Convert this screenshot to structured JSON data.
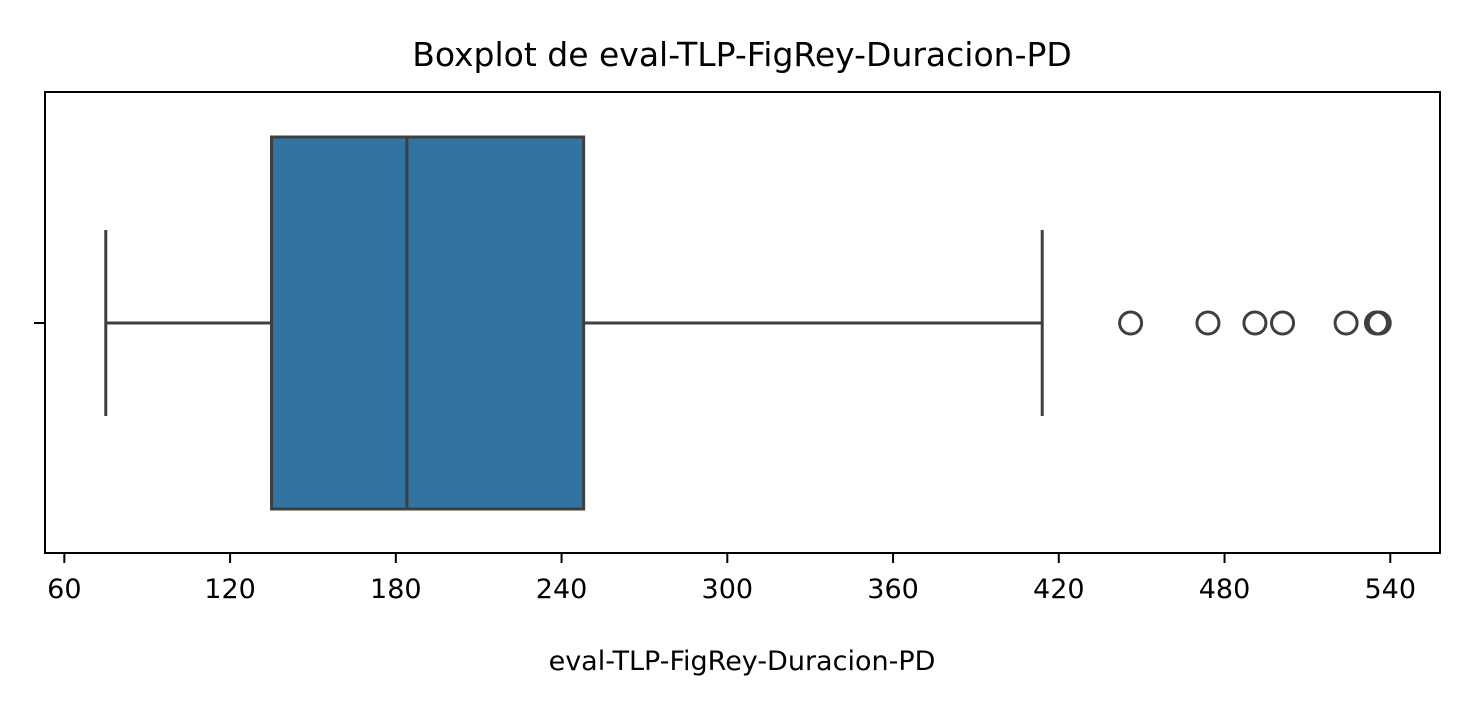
{
  "chart_data": {
    "type": "boxplot",
    "orientation": "horizontal",
    "title": "Boxplot de eval-TLP-FigRey-Duracion-PD",
    "xlabel": "eval-TLP-FigRey-Duracion-PD",
    "ylabel": "",
    "xlim": [
      53,
      558
    ],
    "xticks": [
      60,
      120,
      180,
      240,
      300,
      360,
      420,
      480,
      540
    ],
    "xtick_labels": [
      "60",
      "120",
      "180",
      "240",
      "300",
      "360",
      "420",
      "480",
      "540"
    ],
    "grid": false,
    "legend": "none",
    "box": {
      "whisker_low": 75,
      "q1": 135,
      "median": 184,
      "q3": 248,
      "whisker_high": 414
    },
    "outliers": [
      446,
      474,
      491,
      501,
      524,
      535,
      536
    ],
    "colors": {
      "box_fill": "#3274a1",
      "lines": "#3f3f3f",
      "axes": "#000000"
    }
  }
}
